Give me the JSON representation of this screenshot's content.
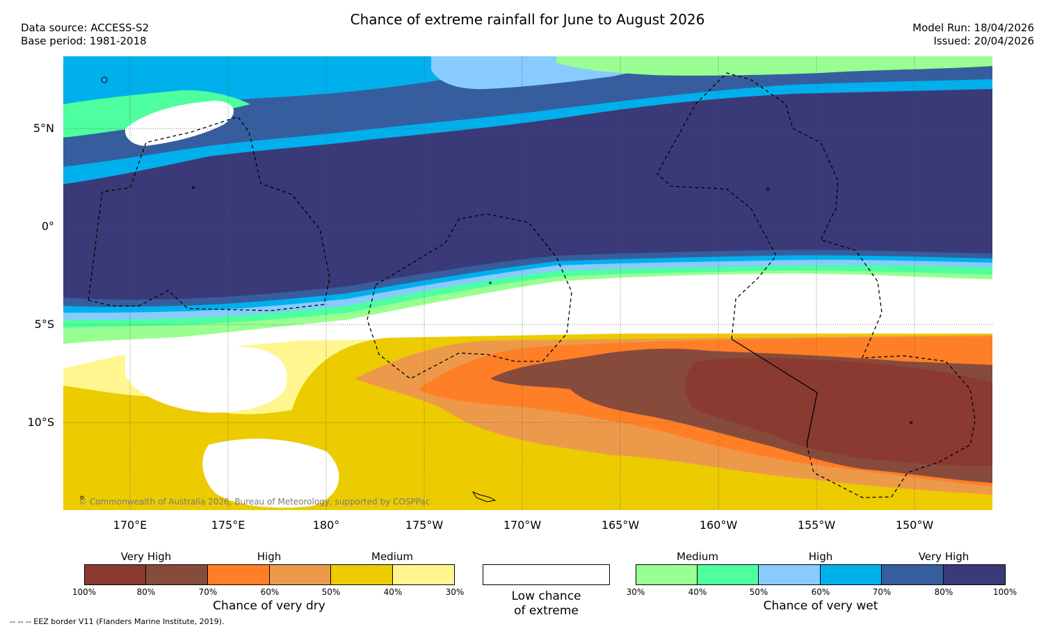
{
  "header": {
    "title": "Chance of extreme rainfall for June to August 2026",
    "data_source": "Data source: ACCESS-S2",
    "base_period": "Base period: 1981-2018",
    "model_run": "Model Run: 18/04/2026",
    "issued": "Issued: 20/04/2026"
  },
  "map": {
    "lat_labels": [
      "5°N",
      "0°",
      "5°S",
      "10°S"
    ],
    "lon_labels": [
      "170°E",
      "175°E",
      "180°",
      "175°W",
      "170°W",
      "165°W",
      "160°W",
      "155°W",
      "150°W"
    ],
    "credit": "© Commonwealth of Australia 2026, Bureau of Meteorology, supported by COSPPac",
    "extent": {
      "lon_min": 167,
      "lon_max": 214.4,
      "lat_min": -14.5,
      "lat_max": 8.7
    }
  },
  "legend": {
    "dry": {
      "groups": [
        "Very High",
        "High",
        "Medium"
      ],
      "colors": [
        "#8a3a31",
        "#874b3c",
        "#ff7f27",
        "#ec9a4a",
        "#eccb00",
        "#fff68f"
      ],
      "ticks": [
        "100%",
        "80%",
        "70%",
        "60%",
        "50%",
        "40%",
        "30%"
      ],
      "caption": "Chance of very dry"
    },
    "low": {
      "color": "#ffffff",
      "caption_line1": "Low chance",
      "caption_line2": "of extreme"
    },
    "wet": {
      "groups": [
        "Medium",
        "High",
        "Very High"
      ],
      "colors": [
        "#99ff91",
        "#4dff9f",
        "#87cbff",
        "#00b0ec",
        "#365e9f",
        "#3b3a78"
      ],
      "ticks": [
        "30%",
        "40%",
        "50%",
        "60%",
        "70%",
        "80%",
        "100%"
      ],
      "caption": "Chance of very wet"
    }
  },
  "footer": "--  --  -- EEZ border V11 (Flanders Marine Institute, 2019)."
}
